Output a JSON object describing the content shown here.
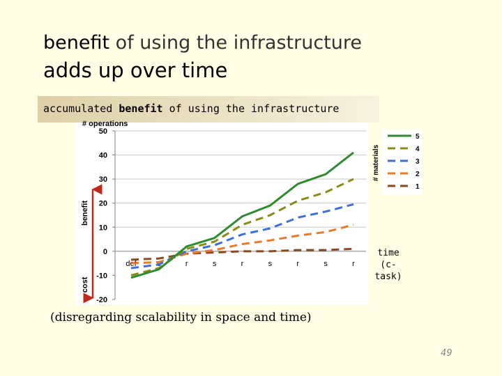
{
  "slide": {
    "title_line1": {
      "part1": "benefit",
      "part2": "of",
      "part3": "using the infrastructure"
    },
    "title_line2": "adds up over time",
    "subtitle": {
      "part1": "accumulated",
      "part2": "benefit",
      "part3": "of using the infrastructure"
    },
    "note": "(disregarding scalability in space and time)",
    "page_number": "49",
    "time_label_line1": "time",
    "time_label_line2": "(c-task)"
  },
  "chart_data": {
    "type": "line",
    "title": "",
    "ylabel_top": "# operations",
    "ylabel_benefit": "benefit",
    "ylabel_cost": "cost",
    "legend_title": "# materials",
    "categories": [
      "def",
      "s",
      "r",
      "s",
      "r",
      "s",
      "r",
      "s",
      "r"
    ],
    "yticks": [
      50,
      40,
      30,
      20,
      10,
      0,
      -10,
      -20
    ],
    "ylim": [
      -20,
      50
    ],
    "grid": true,
    "legend_position": "right",
    "colors": {
      "5": "#2e8b2e",
      "4": "#8a8a18",
      "3": "#3a6fdc",
      "2": "#e87a2a",
      "1": "#8a4a1e"
    },
    "series": [
      {
        "name": "5",
        "style": "solid",
        "values": [
          -11,
          -7.5,
          2,
          5.5,
          14.5,
          19,
          28,
          32,
          41
        ]
      },
      {
        "name": "4",
        "style": "dashed",
        "values": [
          -10,
          -7,
          1,
          4,
          11,
          15,
          21,
          24.5,
          30
        ]
      },
      {
        "name": "3",
        "style": "dashed",
        "values": [
          -7,
          -5.5,
          0,
          2.5,
          7,
          9.5,
          14,
          16.5,
          19.5
        ]
      },
      {
        "name": "2",
        "style": "dashed",
        "values": [
          -5,
          -4.5,
          -1,
          0.5,
          3,
          4.5,
          6.5,
          8,
          11
        ]
      },
      {
        "name": "1",
        "style": "dashed",
        "values": [
          -3.5,
          -3,
          -1,
          -0.5,
          0,
          0,
          0.5,
          0.5,
          1
        ]
      }
    ]
  }
}
